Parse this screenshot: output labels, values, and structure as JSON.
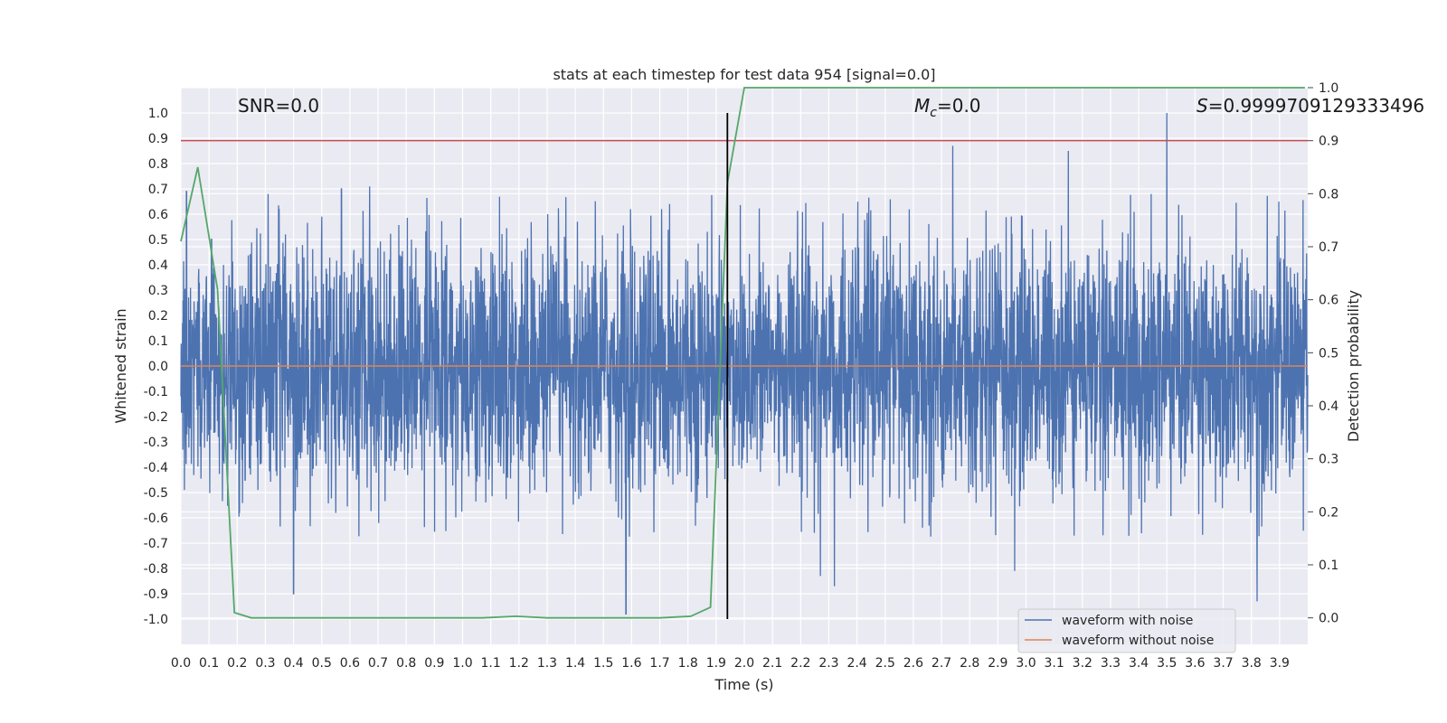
{
  "chart_data": {
    "type": "line",
    "title": "stats at each timestep for test data 954 [signal=0.0]",
    "xlabel": "Time (s)",
    "ylabel": "Whitened strain",
    "ylabel_right": "Detection probability",
    "xlim": [
      0,
      4
    ],
    "ylim": [
      -1.1,
      1.1
    ],
    "ylim_right": [
      -0.05,
      1.0
    ],
    "x_ticks": [
      0.0,
      0.1,
      0.2,
      0.3,
      0.4,
      0.5,
      0.6,
      0.7,
      0.8,
      0.9,
      1.0,
      1.1,
      1.2,
      1.3,
      1.4,
      1.5,
      1.6,
      1.7,
      1.8,
      1.9,
      2.0,
      2.1,
      2.2,
      2.3,
      2.4,
      2.5,
      2.6,
      2.7,
      2.8,
      2.9,
      3.0,
      3.1,
      3.2,
      3.3,
      3.4,
      3.5,
      3.6,
      3.7,
      3.8,
      3.9
    ],
    "x_tick_labels": [
      "0.0",
      "0.1",
      "0.2",
      "0.3",
      "0.4",
      "0.5",
      "0.6",
      "0.7",
      "0.8",
      "0.9",
      "1.0",
      "1.1",
      "1.2",
      "1.3",
      "1.4",
      "1.5",
      "1.6",
      "1.7",
      "1.8",
      "1.9",
      "2.0",
      "2.1",
      "2.2",
      "2.3",
      "2.4",
      "2.5",
      "2.6",
      "2.7",
      "2.8",
      "2.9",
      "3.0",
      "3.1",
      "3.2",
      "3.3",
      "3.4",
      "3.5",
      "3.6",
      "3.7",
      "3.8",
      "3.9"
    ],
    "y_ticks": [
      1.0,
      0.9,
      0.8,
      0.7,
      0.6,
      0.5,
      0.4,
      0.3,
      0.2,
      0.1,
      0.0,
      -0.1,
      -0.2,
      -0.3,
      -0.4,
      -0.5,
      -0.6,
      -0.7,
      -0.8,
      -0.9,
      -1.0
    ],
    "y_tick_labels": [
      "1.0",
      "0.9",
      "0.8",
      "0.7",
      "0.6",
      "0.5",
      "0.4",
      "0.3",
      "0.2",
      "0.1",
      "0.0",
      "-0.1",
      "-0.2",
      "-0.3",
      "-0.4",
      "-0.5",
      "-0.6",
      "-0.7",
      "-0.8",
      "-0.9",
      "-1.0"
    ],
    "y_right_ticks": [
      1.0,
      0.9,
      0.8,
      0.7,
      0.6,
      0.5,
      0.4,
      0.3,
      0.2,
      0.1,
      0.0
    ],
    "y_right_tick_labels": [
      "1.0",
      "0.9",
      "0.8",
      "0.7",
      "0.6",
      "0.5",
      "0.4",
      "0.3",
      "0.2",
      "0.1",
      "0.0"
    ],
    "grid": true,
    "legend_position": "lower-right",
    "series": [
      {
        "name": "waveform with noise",
        "color": "#4c72b0",
        "axis": "left",
        "noise_amplitude_typical": 0.45,
        "peaks": [
          {
            "x": 0.02,
            "y": 0.69
          },
          {
            "x": 0.31,
            "y": 0.68
          },
          {
            "x": 0.57,
            "y": 0.7
          },
          {
            "x": 0.67,
            "y": 0.71
          },
          {
            "x": 2.74,
            "y": 0.87
          },
          {
            "x": 3.15,
            "y": 0.85
          },
          {
            "x": 3.5,
            "y": 1.0
          },
          {
            "x": 0.4,
            "y": -0.9
          },
          {
            "x": 1.58,
            "y": -0.98
          },
          {
            "x": 2.27,
            "y": -0.83
          },
          {
            "x": 2.32,
            "y": -0.87
          },
          {
            "x": 2.96,
            "y": -0.81
          },
          {
            "x": 3.82,
            "y": -0.93
          }
        ]
      },
      {
        "name": "waveform without noise",
        "color": "#dd8452",
        "axis": "left",
        "x": [
          0.0,
          4.0
        ],
        "y": [
          0.0,
          0.0
        ]
      },
      {
        "name": "",
        "color": "#55a868",
        "axis": "right",
        "x": [
          0.0,
          0.06,
          0.13,
          0.19,
          0.25,
          1.0,
          1.07,
          1.19,
          1.3,
          1.6,
          1.7,
          1.81,
          1.88,
          1.94,
          2.0,
          3.99
        ],
        "y": [
          0.71,
          0.85,
          0.62,
          0.01,
          0.0,
          0.0,
          0.0,
          0.003,
          0.0,
          0.0,
          0.0,
          0.003,
          0.02,
          0.82,
          1.0,
          1.0
        ]
      }
    ],
    "threshold_line": {
      "y_right": 0.9,
      "color": "#c44e52"
    },
    "vertical_marker": {
      "x": 1.94,
      "color": "#000000"
    },
    "annotations": {
      "snr": "SNR=0.0",
      "mc_symbol": "M",
      "mc_subscript": "c",
      "mc_value": "=0.0",
      "s_symbol": "S",
      "s_value": "=0.9999709129333496"
    }
  }
}
